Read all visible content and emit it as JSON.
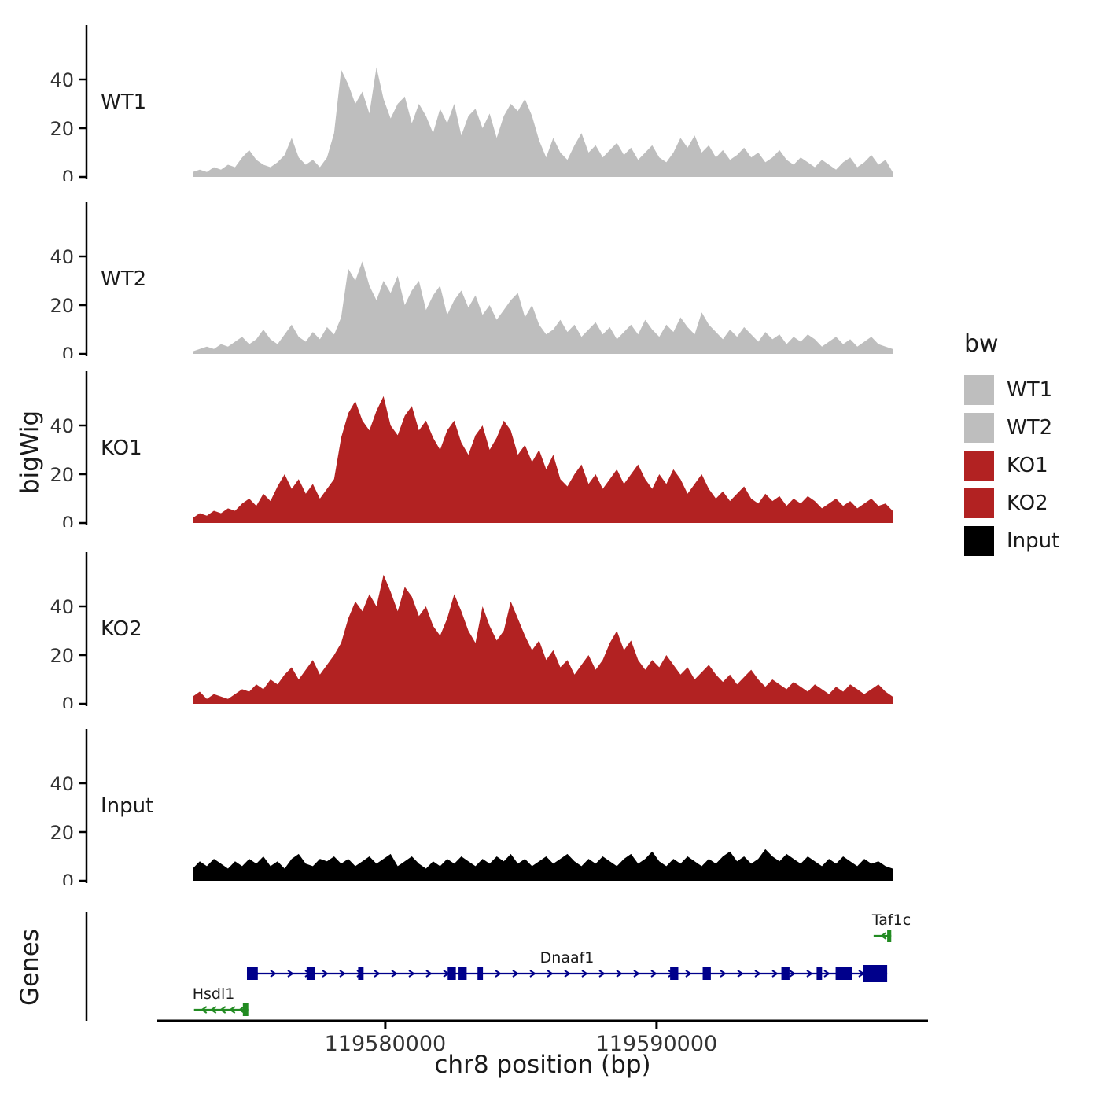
{
  "figure": {
    "ylabel": "bigWig",
    "genes_label": "Genes",
    "xlabel": "chr8 position (bp)"
  },
  "legend": {
    "title": "bw",
    "items": [
      {
        "label": "WT1",
        "color": "#BEBEBE"
      },
      {
        "label": "WT2",
        "color": "#BEBEBE"
      },
      {
        "label": "KO1",
        "color": "#B22222"
      },
      {
        "label": "KO2",
        "color": "#B22222"
      },
      {
        "label": "Input",
        "color": "#000000"
      }
    ]
  },
  "chart_data": {
    "type": "area",
    "title": "",
    "xlabel": "chr8 position (bp)",
    "ylabel": "bigWig",
    "x_range": [
      119572900,
      119598700
    ],
    "x_ticks": [
      119580000,
      119590000
    ],
    "x_tick_labels": [
      "119580000",
      "119590000"
    ],
    "ylim": [
      0,
      55
    ],
    "y_ticks": [
      0,
      20,
      40
    ],
    "tracks": [
      {
        "name": "WT1",
        "color": "#BEBEBE",
        "values": [
          2,
          3,
          2,
          4,
          3,
          5,
          4,
          8,
          11,
          7,
          5,
          4,
          6,
          9,
          16,
          8,
          5,
          7,
          4,
          8,
          18,
          44,
          38,
          30,
          35,
          26,
          45,
          32,
          24,
          30,
          33,
          22,
          30,
          25,
          18,
          28,
          22,
          30,
          17,
          25,
          28,
          20,
          26,
          16,
          25,
          30,
          27,
          32,
          25,
          15,
          8,
          16,
          10,
          7,
          13,
          18,
          10,
          13,
          8,
          11,
          14,
          9,
          12,
          7,
          10,
          13,
          8,
          6,
          10,
          16,
          12,
          17,
          10,
          13,
          8,
          11,
          7,
          9,
          12,
          8,
          10,
          6,
          8,
          11,
          7,
          5,
          8,
          6,
          4,
          7,
          5,
          3,
          6,
          8,
          4,
          6,
          9,
          5,
          7,
          2
        ]
      },
      {
        "name": "WT2",
        "color": "#BEBEBE",
        "values": [
          1,
          2,
          3,
          2,
          4,
          3,
          5,
          7,
          4,
          6,
          10,
          6,
          4,
          8,
          12,
          7,
          5,
          9,
          6,
          11,
          8,
          15,
          35,
          30,
          38,
          28,
          22,
          30,
          25,
          32,
          20,
          26,
          30,
          18,
          24,
          28,
          16,
          22,
          26,
          19,
          24,
          16,
          20,
          14,
          18,
          22,
          25,
          15,
          20,
          12,
          8,
          10,
          14,
          9,
          12,
          7,
          10,
          13,
          8,
          11,
          6,
          9,
          12,
          8,
          14,
          10,
          7,
          12,
          9,
          15,
          11,
          8,
          17,
          12,
          9,
          6,
          10,
          7,
          11,
          8,
          5,
          9,
          6,
          8,
          4,
          7,
          5,
          8,
          6,
          3,
          5,
          7,
          4,
          6,
          3,
          5,
          7,
          4,
          3,
          2
        ]
      },
      {
        "name": "KO1",
        "color": "#B22222",
        "values": [
          2,
          4,
          3,
          5,
          4,
          6,
          5,
          8,
          10,
          7,
          12,
          9,
          15,
          20,
          14,
          18,
          12,
          16,
          10,
          14,
          18,
          35,
          45,
          50,
          42,
          38,
          46,
          52,
          40,
          36,
          44,
          48,
          38,
          42,
          35,
          30,
          38,
          42,
          33,
          28,
          36,
          40,
          30,
          35,
          42,
          38,
          28,
          32,
          25,
          30,
          22,
          28,
          18,
          15,
          20,
          24,
          16,
          20,
          14,
          18,
          22,
          16,
          20,
          24,
          18,
          14,
          20,
          16,
          22,
          18,
          12,
          16,
          20,
          14,
          10,
          13,
          9,
          12,
          15,
          10,
          8,
          12,
          9,
          11,
          7,
          10,
          8,
          11,
          9,
          6,
          8,
          10,
          7,
          9,
          6,
          8,
          10,
          7,
          8,
          5
        ]
      },
      {
        "name": "KO2",
        "color": "#B22222",
        "values": [
          3,
          5,
          2,
          4,
          3,
          2,
          4,
          6,
          5,
          8,
          6,
          10,
          8,
          12,
          15,
          10,
          14,
          18,
          12,
          16,
          20,
          25,
          35,
          42,
          38,
          45,
          40,
          53,
          46,
          38,
          48,
          44,
          36,
          40,
          32,
          28,
          35,
          45,
          38,
          30,
          25,
          40,
          32,
          26,
          30,
          42,
          35,
          28,
          22,
          26,
          18,
          22,
          15,
          18,
          12,
          16,
          20,
          14,
          18,
          25,
          30,
          22,
          26,
          18,
          14,
          18,
          15,
          20,
          16,
          12,
          15,
          10,
          13,
          16,
          12,
          9,
          12,
          8,
          11,
          14,
          10,
          7,
          10,
          8,
          6,
          9,
          7,
          5,
          8,
          6,
          4,
          7,
          5,
          8,
          6,
          4,
          6,
          8,
          5,
          3
        ]
      },
      {
        "name": "Input",
        "color": "#000000",
        "values": [
          5,
          8,
          6,
          9,
          7,
          5,
          8,
          6,
          9,
          7,
          10,
          6,
          8,
          5,
          9,
          11,
          7,
          6,
          9,
          8,
          10,
          7,
          9,
          6,
          8,
          10,
          7,
          9,
          11,
          6,
          8,
          10,
          7,
          5,
          8,
          6,
          9,
          7,
          10,
          8,
          6,
          9,
          7,
          10,
          8,
          11,
          7,
          9,
          6,
          8,
          10,
          7,
          9,
          11,
          8,
          6,
          9,
          7,
          10,
          8,
          6,
          9,
          11,
          7,
          9,
          12,
          8,
          6,
          9,
          7,
          10,
          8,
          6,
          9,
          7,
          10,
          12,
          8,
          10,
          7,
          9,
          13,
          10,
          8,
          11,
          9,
          7,
          10,
          8,
          6,
          9,
          7,
          10,
          8,
          6,
          9,
          7,
          8,
          6,
          5
        ]
      }
    ],
    "genes": [
      {
        "name": "Dnaaf1",
        "color": "#00008B",
        "strand": "+",
        "row": "middle",
        "start": 119574900,
        "end": 119598500,
        "exons": [
          [
            119574900,
            119575300
          ],
          [
            119577100,
            119577400
          ],
          [
            119579000,
            119579200
          ],
          [
            119582300,
            119582600
          ],
          [
            119582700,
            119583000
          ],
          [
            119583400,
            119583600
          ],
          [
            119590500,
            119590800
          ],
          [
            119591700,
            119592000
          ],
          [
            119594600,
            119594900
          ],
          [
            119595900,
            119596100
          ],
          [
            119596600,
            119597200
          ]
        ],
        "thick_exon": [
          119597600,
          119598500
        ]
      },
      {
        "name": "Taf1c",
        "color": "#228B22",
        "strand": "-",
        "row": "top",
        "start": 119598000,
        "end": 119598650,
        "exons": [
          [
            119598500,
            119598650
          ]
        ]
      },
      {
        "name": "Hsdl1",
        "color": "#228B22",
        "strand": "-",
        "row": "bottom",
        "start": 119572950,
        "end": 119574950,
        "exons": [
          [
            119574750,
            119574950
          ]
        ]
      }
    ]
  }
}
